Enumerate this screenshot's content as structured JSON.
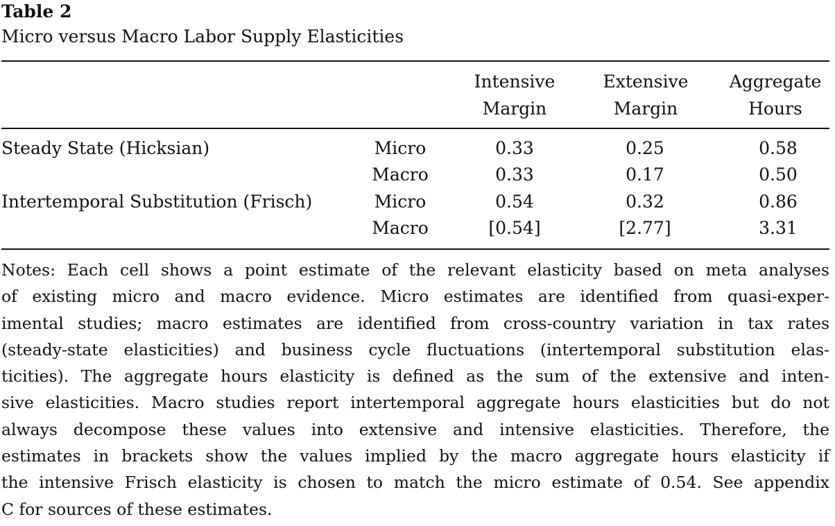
{
  "table": {
    "number": "Table 2",
    "title": "Micro versus Macro Labor Supply Elasticities",
    "columns": [
      {
        "line1": "Intensive",
        "line2": "Margin"
      },
      {
        "line1": "Extensive",
        "line2": "Margin"
      },
      {
        "line1": "Aggregate",
        "line2": "Hours"
      }
    ],
    "rows": [
      {
        "label": "Steady State (Hicksian)",
        "type": "Micro",
        "values": [
          "0.33",
          "0.25",
          "0.58"
        ]
      },
      {
        "label": "",
        "type": "Macro",
        "values": [
          "0.33",
          "0.17",
          "0.50"
        ]
      },
      {
        "label": "Intertemporal Substitution (Frisch)",
        "type": "Micro",
        "values": [
          "0.54",
          "0.32",
          "0.86"
        ]
      },
      {
        "label": "",
        "type": "Macro",
        "values": [
          "[0.54]",
          "[2.77]",
          "3.31"
        ]
      }
    ],
    "notes_lines": [
      "Notes: Each cell shows a point estimate of the relevant elasticity based on meta analyses",
      "of existing micro and macro evidence. Micro estimates are identified from quasi-exper-",
      "imental studies; macro estimates are identified from cross-country variation in tax rates",
      "(steady-state elasticities) and business cycle fluctuations (intertemporal substitution elas-",
      "ticities). The aggregate hours elasticity is defined as the sum of the extensive and inten-",
      "sive elasticities. Macro studies report intertemporal aggregate hours elasticities but do not",
      "always decompose these values into extensive and intensive elasticities. Therefore, the",
      "estimates in brackets show the values implied by the macro aggregate hours elasticity if",
      "the intensive Frisch elasticity is chosen to match the micro estimate of 0.54. See appendix",
      "C for sources of these estimates."
    ]
  }
}
